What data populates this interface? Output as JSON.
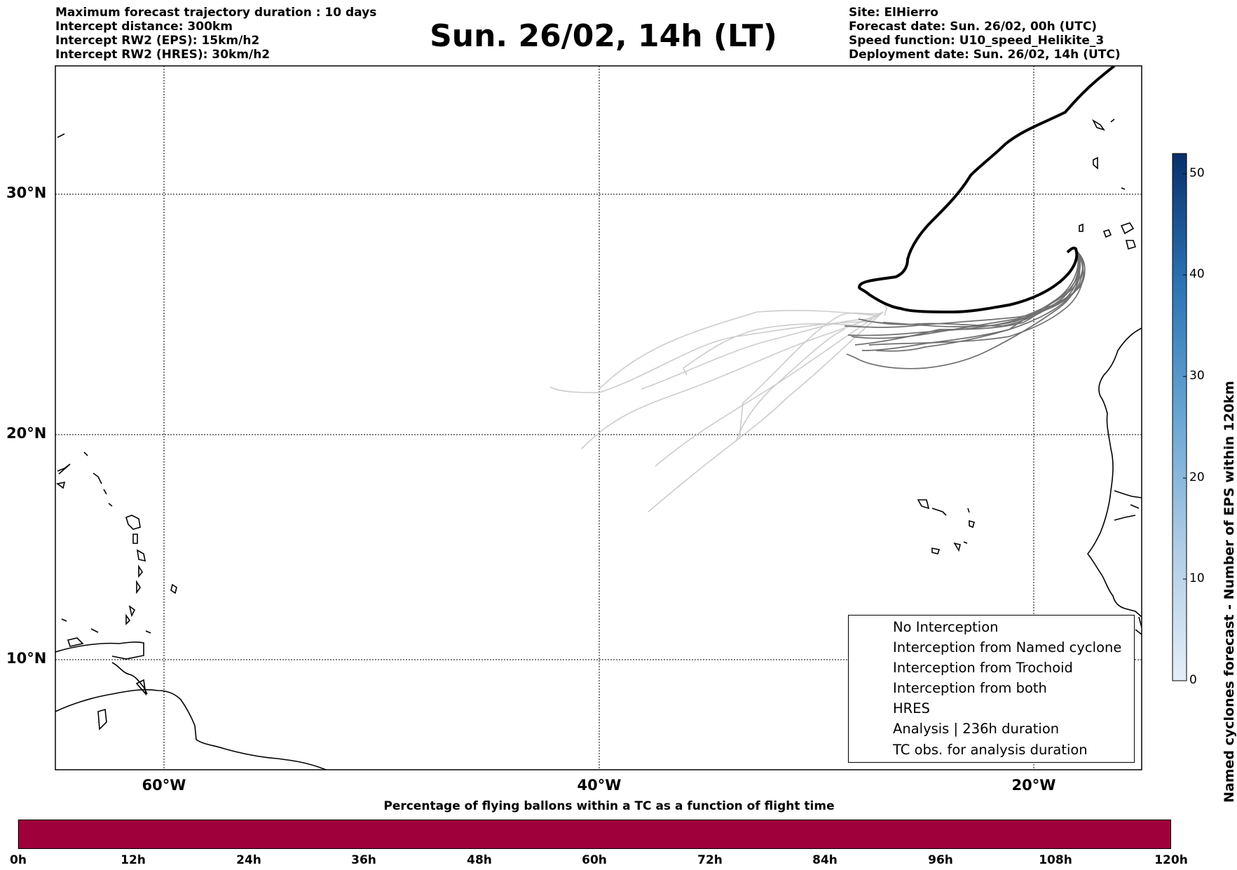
{
  "header": {
    "left_lines": [
      "Maximum forecast trajectory duration : 10 days",
      "Intercept distance: 300km",
      "Intercept RW2 (EPS):  15km/h2",
      "Intercept RW2 (HRES): 30km/h2"
    ],
    "title": "Sun. 26/02, 14h (LT)",
    "right_lines": [
      "Site: ElHierro",
      "Forecast date: Sun. 26/02, 00h (UTC)",
      "Speed function: U10_speed_Helikite_3",
      "Deployment date: Sun. 26/02, 14h (UTC)"
    ]
  },
  "map": {
    "extent": {
      "lon_min": -65,
      "lon_max": -15,
      "lat_min": 5.5,
      "lat_max": 35.3
    },
    "lat_gridlines": [
      {
        "value": 30,
        "label": "30°N"
      },
      {
        "value": 20,
        "label": "20°N"
      },
      {
        "value": 10,
        "label": "10°N"
      }
    ],
    "lon_gridlines": [
      {
        "value": -60,
        "label": "60°W"
      },
      {
        "value": -40,
        "label": "40°W"
      },
      {
        "value": -20,
        "label": "20°W"
      }
    ],
    "colors": {
      "no_interception_dark": "#707070",
      "no_interception_light": "#cccccc",
      "analysis": "#000000",
      "coastline": "#000000"
    }
  },
  "legend": {
    "items": [
      {
        "label": "No Interception",
        "color": "#808080",
        "style": "line-thin"
      },
      {
        "label": "Interception from Named cyclone",
        "color": "#e8602a",
        "style": "line-thin"
      },
      {
        "label": "Interception from Trochoid",
        "color": "#8a8a30",
        "style": "line-thin"
      },
      {
        "label": "Interception from both",
        "color": "#2a8a2a",
        "style": "line-thin"
      },
      {
        "label": "HRES",
        "color": "#8b0a7a",
        "style": "line-thick"
      },
      {
        "label": "Analysis | 236h duration",
        "color": "#000000",
        "style": "line-thick"
      },
      {
        "label": "TC obs. for analysis duration",
        "color": "#000000",
        "style": "cyclone-symbols"
      }
    ]
  },
  "right_colorbar": {
    "label": "Named cyclones forecast - Number of EPS within 120km",
    "ticks": [
      0,
      10,
      20,
      30,
      40,
      50
    ],
    "max": 52,
    "color_low": "#e4eef8",
    "color_high": "#08306b"
  },
  "bottom_colorbar": {
    "title": "Percentage of flying ballons within a TC as a function of flight time",
    "color": "#9f003c",
    "ticks": [
      "0h",
      "12h",
      "24h",
      "36h",
      "48h",
      "60h",
      "72h",
      "84h",
      "96h",
      "108h",
      "120h"
    ]
  }
}
